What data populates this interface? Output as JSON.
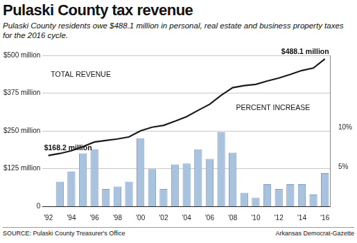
{
  "chart_data": {
    "type": "bar",
    "title": "Pulaski County tax revenue",
    "subtitle": "Pulaski County residents owe $488.1 million in personal, real estate and business property taxes for the 2016 cycle.",
    "source": "SOURCE: Pulaski County Treasurer's Office",
    "credit": "Arkansas Democrat-Gazette",
    "categories": [
      "'92",
      null,
      "'94",
      null,
      "'96",
      null,
      "'98",
      null,
      "'00",
      null,
      "'02",
      null,
      "'04",
      null,
      "'06",
      null,
      "'08",
      null,
      "'10",
      null,
      "'12",
      null,
      "'14",
      null,
      "'16"
    ],
    "series": [
      {
        "name": "TOTAL REVENUE",
        "type": "line",
        "color": "#1a1a1a",
        "values": [
          168.2,
          175,
          184,
          198,
          213,
          218,
          223,
          230,
          250,
          262,
          268,
          282,
          297,
          318,
          338,
          368,
          393,
          400,
          404,
          415,
          425,
          437,
          450,
          458,
          488.1
        ],
        "value_labels": [
          "$168.2 million",
          null,
          null,
          null,
          null,
          null,
          null,
          null,
          null,
          null,
          null,
          null,
          null,
          null,
          null,
          null,
          null,
          null,
          null,
          null,
          null,
          null,
          null,
          null,
          "$488.1 million"
        ]
      },
      {
        "name": "PERCENT INCREASE",
        "type": "bar",
        "color": "#a9c2de",
        "axis": "y2",
        "values": [
          null,
          3.1,
          4.4,
          6.7,
          7.2,
          2.2,
          2.5,
          3.1,
          8.6,
          4.7,
          2.2,
          5.3,
          5.4,
          7.2,
          6.0,
          9.4,
          6.8,
          1.7,
          1.1,
          2.8,
          2.2,
          2.8,
          2.8,
          1.5,
          4.2
        ]
      }
    ],
    "ylim": [
      0,
      500
    ],
    "yticks": [
      0,
      {
        "value": 125,
        "label": "$125 million"
      },
      {
        "value": 250,
        "label": "$250 million"
      },
      {
        "value": 375,
        "label": "$375 million"
      },
      {
        "value": 500,
        "label": "$500 million"
      }
    ],
    "y2lim": [
      0,
      19.1
    ],
    "y2ticks": [
      {
        "value": 5,
        "label": "5%"
      },
      {
        "value": 10,
        "label": "10%"
      }
    ],
    "grid": true
  }
}
